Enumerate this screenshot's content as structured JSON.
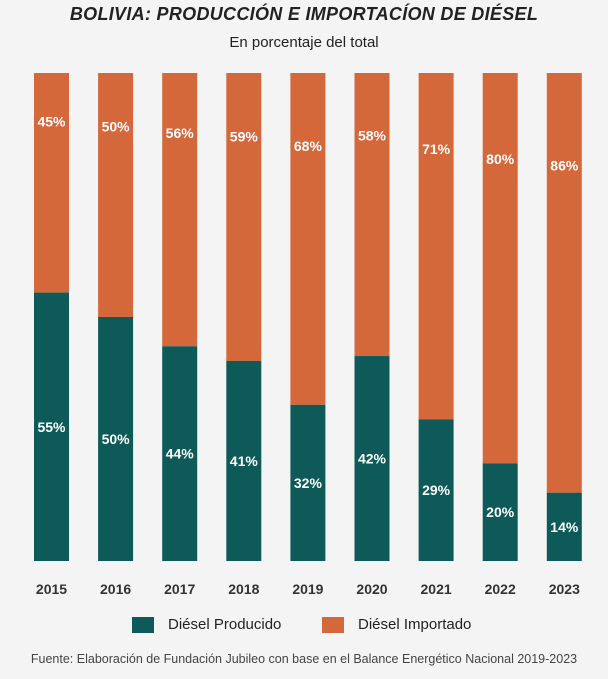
{
  "title": "BOLIVIA: PRODUCCIÓN E IMPORTACÍON DE DIÉSEL",
  "subtitle": "En porcentaje del total",
  "source": "Fuente: Elaboración de Fundación Jubileo con base en el Balance Energético Nacional 2019-2023",
  "colors": {
    "producido": "#0d5a59",
    "importado": "#d4683b",
    "label": "#ffffff",
    "tick": "#333333"
  },
  "chart_data": {
    "type": "bar",
    "stacked": true,
    "title": "BOLIVIA: PRODUCCIÓN E IMPORTACÍON DE DIÉSEL",
    "subtitle": "En porcentaje del total",
    "unit": "%",
    "categories": [
      "2015",
      "2016",
      "2017",
      "2018",
      "2019",
      "2020",
      "2021",
      "2022",
      "2023"
    ],
    "series": [
      {
        "name": "Diésel Producido",
        "values": [
          55,
          50,
          44,
          41,
          32,
          42,
          29,
          20,
          14
        ],
        "labels": [
          "55%",
          "50%",
          "44%",
          "41%",
          "32%",
          "42%",
          "29%",
          "20%",
          "14%"
        ]
      },
      {
        "name": "Diésel Importado",
        "values": [
          45,
          50,
          56,
          59,
          68,
          58,
          71,
          80,
          86
        ],
        "labels": [
          "45%",
          "50%",
          "56%",
          "59%",
          "68%",
          "58%",
          "71%",
          "80%",
          "86%"
        ]
      }
    ],
    "ylim": [
      0,
      100
    ],
    "legend_position": "bottom",
    "grid": false
  }
}
